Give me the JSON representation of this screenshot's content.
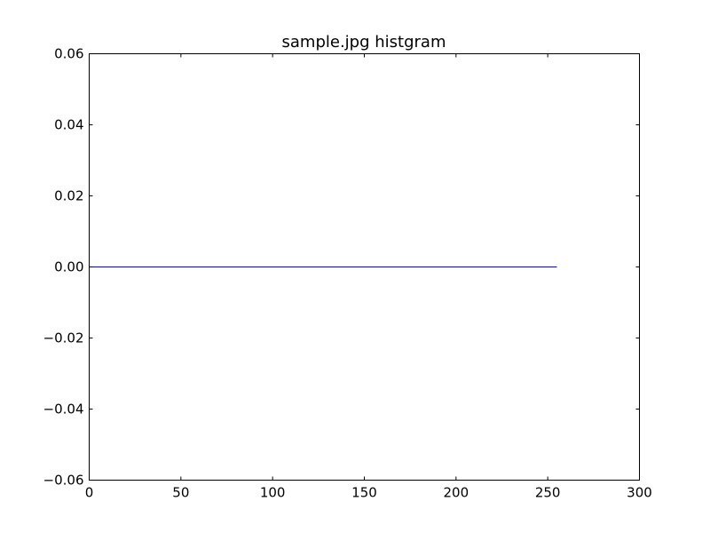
{
  "chart_data": {
    "type": "line",
    "title": "sample.jpg histgram",
    "xlabel": "",
    "ylabel": "",
    "xlim": [
      0,
      300
    ],
    "ylim": [
      -0.06,
      0.06
    ],
    "xticks": [
      {
        "value": 0,
        "label": "0"
      },
      {
        "value": 50,
        "label": "50"
      },
      {
        "value": 100,
        "label": "100"
      },
      {
        "value": 150,
        "label": "150"
      },
      {
        "value": 200,
        "label": "200"
      },
      {
        "value": 250,
        "label": "250"
      },
      {
        "value": 300,
        "label": "300"
      }
    ],
    "yticks": [
      {
        "value": 0.06,
        "label": "0.06"
      },
      {
        "value": 0.04,
        "label": "0.04"
      },
      {
        "value": 0.02,
        "label": "0.02"
      },
      {
        "value": 0.0,
        "label": "0.00"
      },
      {
        "value": -0.02,
        "label": "−0.02"
      },
      {
        "value": -0.04,
        "label": "−0.04"
      },
      {
        "value": -0.06,
        "label": "−0.06"
      }
    ],
    "grid": false,
    "series": [
      {
        "color": "#0000ff",
        "x": [
          0,
          255
        ],
        "y": [
          0,
          0
        ]
      }
    ]
  }
}
